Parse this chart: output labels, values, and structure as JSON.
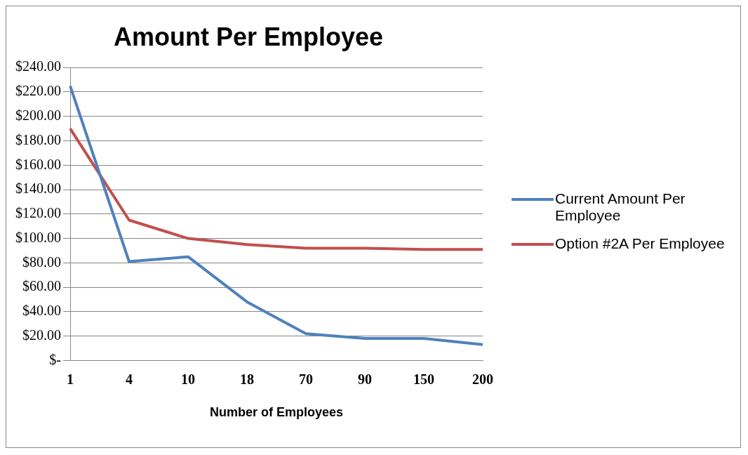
{
  "chart_data": {
    "type": "line",
    "title": "Amount Per Employee",
    "xlabel": "Number of Employees",
    "categories": [
      "1",
      "4",
      "10",
      "18",
      "70",
      "90",
      "150",
      "200"
    ],
    "series": [
      {
        "name": "Current Amount Per Employee",
        "color": "#4f81bd",
        "values": [
          225,
          81,
          85,
          48,
          22,
          18,
          18,
          13
        ]
      },
      {
        "name": "Option #2A Per Employee",
        "color": "#c0504d",
        "values": [
          190,
          115,
          100,
          95,
          92,
          92,
          91,
          91
        ]
      }
    ],
    "ylim": [
      0,
      240
    ],
    "yticks": [
      {
        "value": 0,
        "label": "$-"
      },
      {
        "value": 20,
        "label": "$20.00"
      },
      {
        "value": 40,
        "label": "$40.00"
      },
      {
        "value": 60,
        "label": "$60.00"
      },
      {
        "value": 80,
        "label": "$80.00"
      },
      {
        "value": 100,
        "label": "$100.00"
      },
      {
        "value": 120,
        "label": "$120.00"
      },
      {
        "value": 140,
        "label": "$140.00"
      },
      {
        "value": 160,
        "label": "$160.00"
      },
      {
        "value": 180,
        "label": "$180.00"
      },
      {
        "value": 200,
        "label": "$200.00"
      },
      {
        "value": 220,
        "label": "$220.00"
      },
      {
        "value": 240,
        "label": "$240.00"
      }
    ],
    "grid": "y",
    "legend": "right",
    "marker": "none",
    "line_style": "solid"
  }
}
